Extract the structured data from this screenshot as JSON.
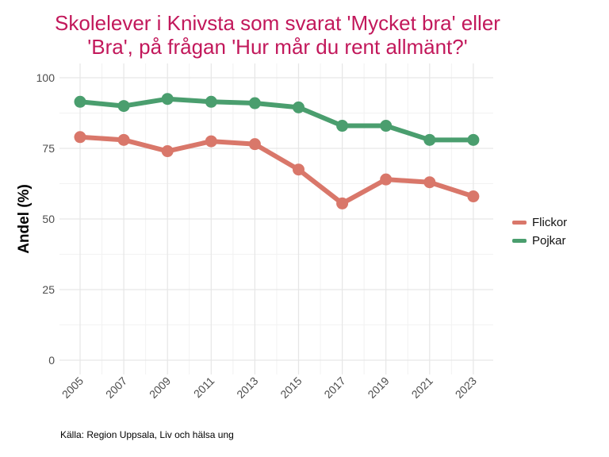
{
  "chart_data": {
    "type": "line",
    "title_line1": "Skolelever i Knivsta som svarat 'Mycket bra' eller",
    "title_line2": "'Bra', på frågan 'Hur mår du rent allmänt?'",
    "xlabel": "",
    "ylabel": "Andel (%)",
    "caption": "Källa: Region Uppsala, Liv och hälsa ung",
    "categories": [
      "2005",
      "2007",
      "2009",
      "2011",
      "2013",
      "2015",
      "2017",
      "2019",
      "2021",
      "2023"
    ],
    "ylim": [
      0,
      100
    ],
    "yticks": [
      "0",
      "25",
      "50",
      "75",
      "100"
    ],
    "grid": true,
    "legend_position": "right",
    "series": [
      {
        "name": "Flickor",
        "color": "#d9776a",
        "values": [
          79,
          78,
          74,
          77.5,
          76.5,
          67.5,
          55.5,
          64,
          63,
          58
        ]
      },
      {
        "name": "Pojkar",
        "color": "#4a9e6e",
        "values": [
          91.5,
          90,
          92.5,
          91.5,
          91,
          89.5,
          83,
          83,
          78,
          78
        ]
      }
    ]
  }
}
